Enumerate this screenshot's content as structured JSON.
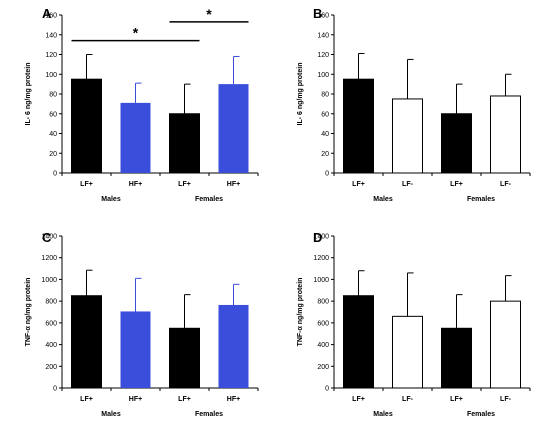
{
  "colors": {
    "black": "#000000",
    "blue": "#3b4ddb",
    "white": "#ffffff",
    "axis": "#000000"
  },
  "chart_data": [
    {
      "type": "bar",
      "panel": "A",
      "ylabel": "IL- 6 ng/mg protein",
      "ylim": [
        0,
        160
      ],
      "yticks": [
        0,
        20,
        40,
        60,
        80,
        100,
        120,
        140,
        160
      ],
      "categories": [
        "LF+",
        "HF+",
        "LF+",
        "HF+"
      ],
      "groups": [
        "Males",
        "Females"
      ],
      "values": [
        95,
        71,
        60,
        90
      ],
      "errors": [
        25,
        20,
        30,
        28
      ],
      "fills": [
        "black",
        "blue",
        "black",
        "blue"
      ],
      "significance": [
        {
          "from": 0,
          "to": 2,
          "y": 134,
          "label": "*"
        },
        {
          "from": 2,
          "to": 3,
          "y": 153,
          "label": "*"
        }
      ]
    },
    {
      "type": "bar",
      "panel": "B",
      "ylabel": "IL- 6 ng/mg protein",
      "ylim": [
        0,
        160
      ],
      "yticks": [
        0,
        20,
        40,
        60,
        80,
        100,
        120,
        140,
        160
      ],
      "categories": [
        "LF+",
        "LF-",
        "LF+",
        "LF-"
      ],
      "groups": [
        "Males",
        "Females"
      ],
      "values": [
        95,
        75,
        60,
        78
      ],
      "errors": [
        26,
        40,
        30,
        22
      ],
      "fills": [
        "black",
        "white",
        "black",
        "white"
      ],
      "significance": []
    },
    {
      "type": "bar",
      "panel": "C",
      "ylabel": "TNF-α ng/mg protein",
      "ylim": [
        0,
        1400
      ],
      "yticks": [
        0,
        200,
        400,
        600,
        800,
        1000,
        1200,
        1400
      ],
      "categories": [
        "LF+",
        "HF+",
        "LF+",
        "HF+"
      ],
      "groups": [
        "Males",
        "Females"
      ],
      "values": [
        850,
        705,
        550,
        765
      ],
      "errors": [
        235,
        305,
        310,
        190
      ],
      "fills": [
        "black",
        "blue",
        "black",
        "blue"
      ],
      "significance": []
    },
    {
      "type": "bar",
      "panel": "D",
      "ylabel": "TNF-α ng/mg protein",
      "ylim": [
        0,
        1400
      ],
      "yticks": [
        0,
        200,
        400,
        600,
        800,
        1000,
        1200,
        1400
      ],
      "categories": [
        "LF+",
        "LF-",
        "LF+",
        "LF-"
      ],
      "groups": [
        "Males",
        "Females"
      ],
      "values": [
        850,
        660,
        550,
        800
      ],
      "errors": [
        230,
        400,
        310,
        235
      ],
      "fills": [
        "black",
        "white",
        "black",
        "white"
      ],
      "significance": []
    }
  ]
}
